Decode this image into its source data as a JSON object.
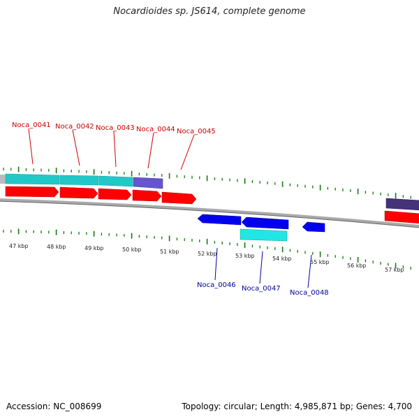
{
  "title": "Nocardioides sp. JS614, complete genome",
  "footer": {
    "accession": "Accession: NC_008699",
    "topology": "Topology: circular; Length: 4,985,871 bp; Genes: 4,700"
  },
  "colors": {
    "forward_label": "#cc0000",
    "reverse_label": "#000099",
    "forward_cds": "#ff0000",
    "reverse_cds": "#0000ee",
    "cyan_feature": "#22c8c8",
    "purple_feature": "#6655cc",
    "dark_feature": "#443377",
    "tick": "#117711"
  },
  "scale_labels": [
    "47 kbp",
    "48 kbp",
    "49 kbp",
    "50 kbp",
    "51 kbp",
    "52 kbp",
    "53 kbp",
    "54 kbp",
    "55 kbp",
    "56 kbp",
    "57 kbp"
  ],
  "genes_forward": [
    "Noca_0041",
    "Noca_0042",
    "Noca_0043",
    "Noca_0044",
    "Noca_0045"
  ],
  "genes_reverse": [
    "Noca_0046",
    "Noca_0047",
    "Noca_0048"
  ]
}
